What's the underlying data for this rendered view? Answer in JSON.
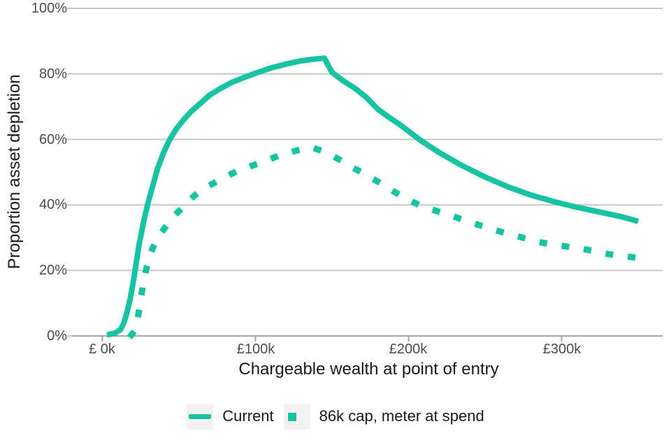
{
  "chart_data": {
    "type": "line",
    "title": "",
    "xlabel": "Chargeable wealth at point of entry",
    "ylabel": "Proportion asset depletion",
    "legend_position": "bottom",
    "grid": "horizontal",
    "x_axis": {
      "units": "£ thousands",
      "range_k": [
        0,
        350
      ],
      "tick_values": [
        0,
        100,
        200,
        300
      ],
      "tick_labels": [
        "£ 0k",
        "£100k",
        "£200k",
        "£300k"
      ]
    },
    "y_axis": {
      "units": "percent",
      "range_pct": [
        0,
        100
      ],
      "tick_values": [
        0,
        20,
        40,
        60,
        80,
        100
      ],
      "tick_labels": [
        "0%",
        "20%",
        "40%",
        "60%",
        "80%",
        "100%"
      ]
    },
    "colors": {
      "series_teal": "#17C3A2",
      "gridline": "#c7c7c7",
      "axis_line": "#a5a5a5",
      "tick_text": "#4d4d4d",
      "title_text": "#1a1a1a",
      "legend_key_bg": "#f2f2f2"
    },
    "series": [
      {
        "name": "Current",
        "line_style": "solid",
        "color": "#17C3A2",
        "points": [
          [
            3,
            0.3
          ],
          [
            8,
            0.8
          ],
          [
            12,
            2
          ],
          [
            14,
            4
          ],
          [
            16,
            7
          ],
          [
            18,
            11
          ],
          [
            20,
            16
          ],
          [
            22,
            22
          ],
          [
            24,
            28
          ],
          [
            27,
            35
          ],
          [
            30,
            41
          ],
          [
            33,
            46
          ],
          [
            36,
            51
          ],
          [
            40,
            56
          ],
          [
            44,
            60
          ],
          [
            48,
            63
          ],
          [
            53,
            66
          ],
          [
            58,
            68.5
          ],
          [
            64,
            71
          ],
          [
            70,
            73.5
          ],
          [
            77,
            75.5
          ],
          [
            84,
            77.3
          ],
          [
            92,
            78.8
          ],
          [
            100,
            80.2
          ],
          [
            110,
            81.8
          ],
          [
            120,
            83
          ],
          [
            130,
            84
          ],
          [
            138,
            84.5
          ],
          [
            145,
            84.8
          ],
          [
            150,
            80.5
          ],
          [
            157,
            78
          ],
          [
            165,
            75.6
          ],
          [
            172,
            73
          ],
          [
            180,
            69.2
          ],
          [
            188,
            66.5
          ],
          [
            195,
            64.3
          ],
          [
            207,
            60
          ],
          [
            220,
            56
          ],
          [
            235,
            52
          ],
          [
            250,
            48.5
          ],
          [
            265,
            45.5
          ],
          [
            280,
            43
          ],
          [
            295,
            41
          ],
          [
            310,
            39.3
          ],
          [
            325,
            37.8
          ],
          [
            340,
            36.3
          ],
          [
            350,
            35
          ]
        ]
      },
      {
        "name": "86k cap, meter at spend",
        "line_style": "dotted",
        "color": "#17C3A2",
        "points": [
          [
            19,
            0.3
          ],
          [
            21,
            1.5
          ],
          [
            23,
            5
          ],
          [
            25,
            11
          ],
          [
            27,
            17
          ],
          [
            30,
            23
          ],
          [
            33,
            27
          ],
          [
            37,
            30.5
          ],
          [
            43,
            34.5
          ],
          [
            48,
            37.2
          ],
          [
            54,
            40
          ],
          [
            60,
            42.8
          ],
          [
            67,
            45.2
          ],
          [
            74,
            47
          ],
          [
            82,
            49
          ],
          [
            90,
            50.7
          ],
          [
            98,
            52
          ],
          [
            106,
            53.3
          ],
          [
            114,
            54.8
          ],
          [
            122,
            56
          ],
          [
            130,
            57
          ],
          [
            137,
            57.5
          ],
          [
            145,
            56.3
          ],
          [
            155,
            53.8
          ],
          [
            163,
            51.5
          ],
          [
            170,
            49.8
          ],
          [
            177,
            47.9
          ],
          [
            184,
            46
          ],
          [
            190,
            44.2
          ],
          [
            198,
            42
          ],
          [
            206,
            40.2
          ],
          [
            214,
            38.8
          ],
          [
            222,
            37.6
          ],
          [
            230,
            36.4
          ],
          [
            237,
            35.2
          ],
          [
            245,
            34
          ],
          [
            253,
            32.8
          ],
          [
            261,
            31.7
          ],
          [
            269,
            30.7
          ],
          [
            277,
            29.7
          ],
          [
            285,
            28.7
          ],
          [
            293,
            28
          ],
          [
            302,
            27.4
          ],
          [
            310,
            26.8
          ],
          [
            318,
            26.2
          ],
          [
            326,
            25.4
          ],
          [
            334,
            24.7
          ],
          [
            342,
            24.3
          ],
          [
            350,
            23.8
          ]
        ]
      }
    ]
  }
}
